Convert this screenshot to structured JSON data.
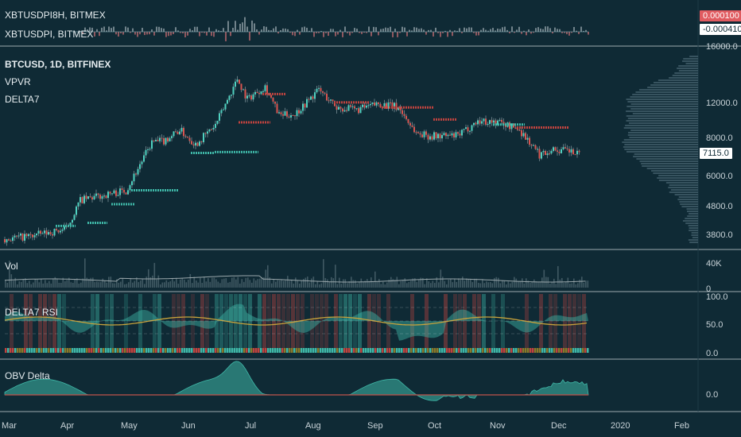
{
  "colors": {
    "background": "#0f2a35",
    "separator": "#ffffff",
    "up": "#4fd1c0",
    "down": "#d9544f",
    "teal": "#3fb8a8",
    "red": "#c0433f",
    "ma": "#c7a23b",
    "volume": "#6a7f88",
    "vpvr": "#3e5b66"
  },
  "top_panel": {
    "legend": [
      "XBTUSDPI8H, BITMEX",
      "XBTUSDPI, BITMEX"
    ],
    "price_labels": [
      "0.000100",
      "-0.000410"
    ]
  },
  "main_panel": {
    "title": "BTCUSD, 1D, BITFINEX",
    "indicators": [
      "VPVR",
      "DELTA7"
    ],
    "current_price": "7115.0"
  },
  "vol_panel": {
    "legend": "Vol"
  },
  "rsi_panel": {
    "legend": "DELTA7 RSI"
  },
  "obv_panel": {
    "legend": "OBV Delta"
  },
  "chart_data": {
    "type": "line",
    "title": "BTCUSD, 1D, BITFINEX",
    "x_tick_labels": [
      "Mar",
      "Apr",
      "May",
      "Jun",
      "Jul",
      "Aug",
      "Sep",
      "Oct",
      "Nov",
      "Dec",
      "2020",
      "Feb"
    ],
    "y_tick_labels": [
      "16000.0",
      "12000.0",
      "8000.0",
      "6000.0",
      "4800.0",
      "3800.0"
    ],
    "y_log_scale": true,
    "ylim": [
      3600,
      16000
    ],
    "series": [
      {
        "x": [
          "Mar 1",
          "Mar 15",
          "Apr 1",
          "Apr 8",
          "Apr 20",
          "May 1",
          "May 14",
          "May 20",
          "May 28",
          "Jun 5",
          "Jun 15",
          "Jun 26",
          "Jul 1",
          "Jul 10",
          "Jul 17",
          "Jul 25",
          "Aug 6",
          "Aug 15",
          "Aug 25",
          "Sep 5",
          "Sep 15",
          "Sep 24",
          "Oct 1",
          "Oct 15",
          "Oct 25",
          "Nov 5",
          "Nov 15",
          "Nov 25",
          "Dec 1",
          "Dec 10",
          "Dec 16"
        ],
        "values": [
          3800,
          3900,
          4100,
          5100,
          5300,
          5500,
          7900,
          8000,
          8700,
          7800,
          9000,
          12800,
          11000,
          12100,
          9700,
          9800,
          11800,
          10300,
          10100,
          10600,
          10300,
          8500,
          8300,
          8300,
          9300,
          9200,
          8700,
          7200,
          7500,
          7400,
          7115
        ]
      }
    ],
    "vol_axis": [
      "40K",
      "0"
    ],
    "rsi_axis": [
      "100.0",
      "50.0",
      "0.0"
    ],
    "obv_axis": [
      "0.0"
    ],
    "grid": false
  }
}
